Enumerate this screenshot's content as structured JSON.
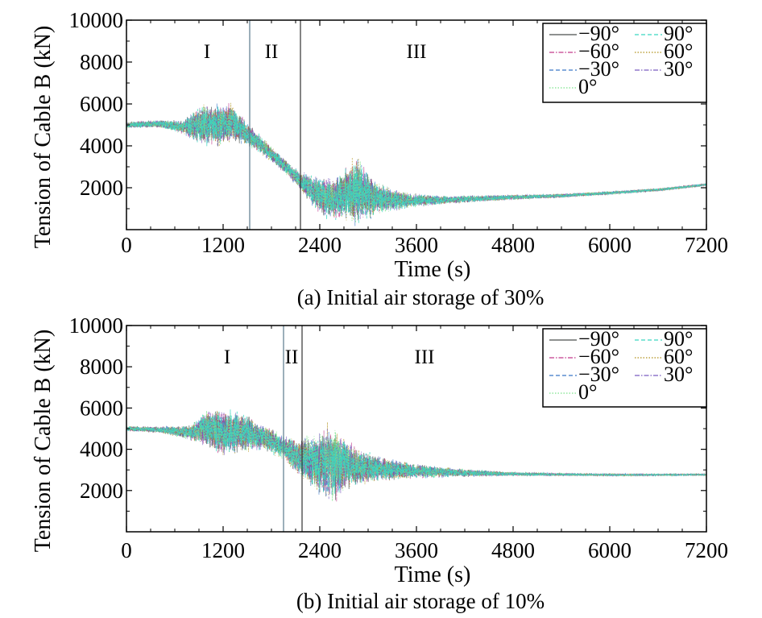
{
  "chart_data": [
    {
      "type": "line",
      "caption": "(a) Initial air storage of 30%",
      "xlabel": "Time (s)",
      "ylabel": "Tension of Cable B (kN)",
      "xlim": [
        0,
        7200
      ],
      "ylim": [
        0,
        10000
      ],
      "xticks": [
        0,
        1200,
        2400,
        3600,
        4800,
        6000,
        7200
      ],
      "yticks": [
        2000,
        4000,
        6000,
        8000,
        10000
      ],
      "xtick_labels": [
        "0",
        "1200",
        "2400",
        "3600",
        "4800",
        "6000",
        "7200"
      ],
      "ytick_labels": [
        "2000",
        "4000",
        "6000",
        "8000",
        "10000"
      ],
      "grid": false,
      "legend_position": "top-right",
      "region_boundaries": [
        1530,
        2160
      ],
      "regions": [
        {
          "label": "I",
          "x": 1000
        },
        {
          "label": "II",
          "x": 1800
        },
        {
          "label": "III",
          "x": 3600
        }
      ],
      "series": [
        {
          "name": "−90°",
          "color": "#4a4f4d",
          "dash": "solid"
        },
        {
          "name": "−60°",
          "color": "#c23a8c",
          "dash": "dashdot"
        },
        {
          "name": "−30°",
          "color": "#3a78c8",
          "dash": "dashed"
        },
        {
          "name": "0°",
          "color": "#7be38a",
          "dash": "dotted"
        },
        {
          "name": "90°",
          "color": "#3ad6c0",
          "dash": "dashed"
        },
        {
          "name": "60°",
          "color": "#b0901a",
          "dash": "dotted"
        },
        {
          "name": "30°",
          "color": "#7a5cc0",
          "dash": "dashdot"
        }
      ],
      "envelope": {
        "x": [
          0,
          400,
          700,
          900,
          1100,
          1300,
          1530,
          1800,
          2000,
          2160,
          2300,
          2450,
          2600,
          2750,
          2850,
          2950,
          3100,
          3300,
          3600,
          4000,
          4800,
          5400,
          6000,
          6600,
          7200
        ],
        "mid": [
          5000,
          5050,
          4900,
          5000,
          4950,
          5100,
          4500,
          3600,
          2900,
          2300,
          1900,
          1550,
          1500,
          1700,
          1900,
          1700,
          1500,
          1400,
          1400,
          1420,
          1550,
          1620,
          1750,
          1900,
          2150
        ],
        "amp": [
          150,
          180,
          300,
          900,
          1000,
          900,
          500,
          350,
          350,
          450,
          700,
          1000,
          1000,
          1300,
          1700,
          1200,
          800,
          500,
          300,
          180,
          120,
          90,
          70,
          60,
          50
        ]
      }
    },
    {
      "type": "line",
      "caption": "(b) Initial air storage of 10%",
      "xlabel": "Time (s)",
      "ylabel": "Tension of Cable B (kN)",
      "xlim": [
        0,
        7200
      ],
      "ylim": [
        0,
        10000
      ],
      "xticks": [
        0,
        1200,
        2400,
        3600,
        4800,
        6000,
        7200
      ],
      "yticks": [
        2000,
        4000,
        6000,
        8000,
        10000
      ],
      "xtick_labels": [
        "0",
        "1200",
        "2400",
        "3600",
        "4800",
        "6000",
        "7200"
      ],
      "ytick_labels": [
        "2000",
        "4000",
        "6000",
        "8000",
        "10000"
      ],
      "grid": false,
      "legend_position": "top-right",
      "region_boundaries": [
        1950,
        2180
      ],
      "regions": [
        {
          "label": "I",
          "x": 1250
        },
        {
          "label": "II",
          "x": 2050
        },
        {
          "label": "III",
          "x": 3700
        }
      ],
      "series": [
        {
          "name": "−90°",
          "color": "#4a4f4d",
          "dash": "solid"
        },
        {
          "name": "−60°",
          "color": "#c23a8c",
          "dash": "dashdot"
        },
        {
          "name": "−30°",
          "color": "#3a78c8",
          "dash": "dashed"
        },
        {
          "name": "0°",
          "color": "#7be38a",
          "dash": "dotted"
        },
        {
          "name": "90°",
          "color": "#3ad6c0",
          "dash": "dashed"
        },
        {
          "name": "60°",
          "color": "#b0901a",
          "dash": "dotted"
        },
        {
          "name": "30°",
          "color": "#7a5cc0",
          "dash": "dashdot"
        }
      ],
      "envelope": {
        "x": [
          0,
          400,
          800,
          1000,
          1200,
          1400,
          1700,
          1950,
          2100,
          2300,
          2500,
          2600,
          2800,
          3100,
          3600,
          4200,
          4800,
          5400,
          6000,
          6600,
          7200
        ],
        "mid": [
          5000,
          4950,
          4800,
          5000,
          4800,
          4850,
          4600,
          4100,
          3700,
          3400,
          3300,
          3350,
          3200,
          3050,
          2950,
          2850,
          2800,
          2780,
          2760,
          2760,
          2770
        ],
        "amp": [
          120,
          150,
          350,
          900,
          1100,
          950,
          600,
          550,
          800,
          1300,
          1800,
          1700,
          1000,
          600,
          350,
          180,
          90,
          60,
          50,
          40,
          35
        ]
      }
    }
  ]
}
